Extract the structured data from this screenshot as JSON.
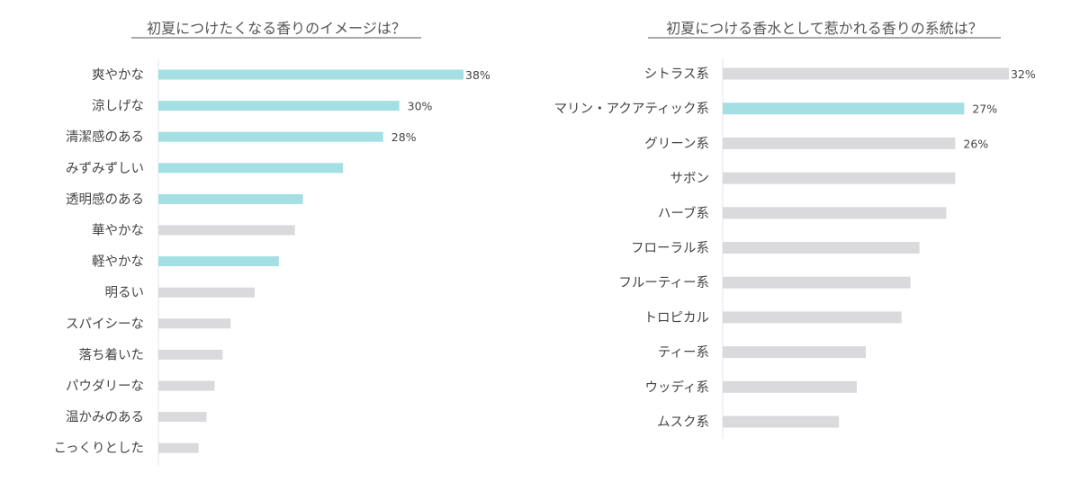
{
  "colors": {
    "highlight": "#a3dfe3",
    "normal": "#dadadd",
    "title": "#555555",
    "text": "#444444",
    "axis": "#e6e6ea"
  },
  "chart_data": [
    {
      "type": "bar",
      "orientation": "horizontal",
      "title": "初夏につけたくなる香りのイメージは？",
      "categories": [
        "爽やかな",
        "涼しげな",
        "清潔感のある",
        "みずみずしい",
        "透明感のある",
        "華やかな",
        "軽やかな",
        "明るい",
        "スパイシーな",
        "落ち着いた",
        "パウダリーな",
        "温かみのある",
        "こっくりとした"
      ],
      "values": [
        38,
        30,
        28,
        23,
        18,
        17,
        15,
        12,
        9,
        8,
        7,
        6,
        5
      ],
      "highlighted": [
        true,
        true,
        true,
        true,
        true,
        false,
        true,
        false,
        false,
        false,
        false,
        false,
        false
      ],
      "value_labels": [
        "38%",
        "30%",
        "28%",
        "",
        "",
        "",
        "",
        "",
        "",
        "",
        "",
        "",
        ""
      ],
      "xlim": [
        0,
        38
      ]
    },
    {
      "type": "bar",
      "orientation": "horizontal",
      "title": "初夏につける香水として惹かれる香りの系統は？",
      "categories": [
        "シトラス系",
        "マリン・アクアティック系",
        "グリーン系",
        "サボン",
        "ハーブ系",
        "フローラル系",
        "フルーティー系",
        "トロピカル",
        "ティー系",
        "ウッディ系",
        "ムスク系"
      ],
      "values": [
        32,
        27,
        26,
        26,
        25,
        22,
        21,
        20,
        16,
        15,
        13
      ],
      "highlighted": [
        false,
        true,
        false,
        false,
        false,
        false,
        false,
        false,
        false,
        false,
        false
      ],
      "value_labels": [
        "32%",
        "27%",
        "26%",
        "",
        "",
        "",
        "",
        "",
        "",
        "",
        ""
      ],
      "xlim": [
        0,
        32
      ]
    }
  ]
}
